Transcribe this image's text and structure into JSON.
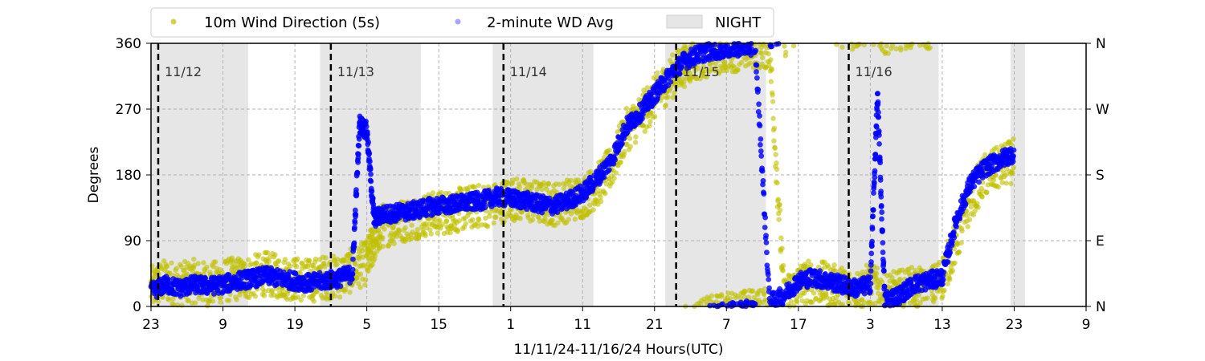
{
  "chart_data": {
    "type": "scatter",
    "title": "",
    "xlabel": "11/11/24-11/16/24  Hours(UTC)",
    "ylabel": "Degrees",
    "x_units": "hours since 11/11/24 23:00 UTC",
    "xlim": [
      0,
      130
    ],
    "ylim": [
      0,
      360
    ],
    "x_ticks": [
      {
        "x": 0,
        "label": "23"
      },
      {
        "x": 10,
        "label": "9"
      },
      {
        "x": 20,
        "label": "19"
      },
      {
        "x": 30,
        "label": "5"
      },
      {
        "x": 40,
        "label": "15"
      },
      {
        "x": 50,
        "label": "1"
      },
      {
        "x": 60,
        "label": "11"
      },
      {
        "x": 70,
        "label": "21"
      },
      {
        "x": 80,
        "label": "7"
      },
      {
        "x": 90,
        "label": "17"
      },
      {
        "x": 100,
        "label": "3"
      },
      {
        "x": 110,
        "label": "13"
      },
      {
        "x": 120,
        "label": "23"
      },
      {
        "x": 130,
        "label": "9"
      }
    ],
    "y_ticks": [
      {
        "y": 0,
        "label": "0"
      },
      {
        "y": 90,
        "label": "90"
      },
      {
        "y": 180,
        "label": "180"
      },
      {
        "y": 270,
        "label": "270"
      },
      {
        "y": 360,
        "label": "360"
      }
    ],
    "y_ticks_right": [
      {
        "y": 0,
        "label": "N"
      },
      {
        "y": 90,
        "label": "E"
      },
      {
        "y": 180,
        "label": "S"
      },
      {
        "y": 270,
        "label": "W"
      },
      {
        "y": 360,
        "label": "N"
      }
    ],
    "grid": true,
    "legend_position": "top-center-outside",
    "legend": [
      {
        "label": "10m Wind Direction (5s)",
        "marker": "point",
        "color": "#bfbf00"
      },
      {
        "label": "2-minute WD Avg",
        "marker": "point",
        "color": "#0000ff"
      },
      {
        "label": "NIGHT",
        "marker": "patch",
        "color": "#e6e6e6"
      }
    ],
    "night_periods": [
      [
        0,
        13.5
      ],
      [
        23.5,
        37.5
      ],
      [
        47.5,
        61.5
      ],
      [
        71.5,
        85.5
      ],
      [
        95.5,
        109.5
      ],
      [
        119.5,
        121.5
      ]
    ],
    "day_boundaries": [
      {
        "x": 1,
        "label": "11/12"
      },
      {
        "x": 25,
        "label": "11/13"
      },
      {
        "x": 49,
        "label": "11/14"
      },
      {
        "x": 73,
        "label": "11/15"
      },
      {
        "x": 97,
        "label": "11/16"
      }
    ],
    "series": [
      {
        "name": "10m Wind Direction (5s)",
        "color": "#bfbf00",
        "spread": 30,
        "points": [
          [
            0,
            25
          ],
          [
            2,
            35
          ],
          [
            4,
            30
          ],
          [
            6,
            35
          ],
          [
            8,
            30
          ],
          [
            10,
            35
          ],
          [
            12,
            38
          ],
          [
            14,
            40
          ],
          [
            16,
            45
          ],
          [
            18,
            40
          ],
          [
            20,
            38
          ],
          [
            22,
            35
          ],
          [
            24,
            40
          ],
          [
            26,
            40
          ],
          [
            28,
            50
          ],
          [
            30,
            60
          ],
          [
            31,
            90
          ],
          [
            32,
            110
          ],
          [
            34,
            115
          ],
          [
            36,
            120
          ],
          [
            38,
            125
          ],
          [
            40,
            128
          ],
          [
            42,
            130
          ],
          [
            44,
            135
          ],
          [
            46,
            138
          ],
          [
            48,
            140
          ],
          [
            50,
            148
          ],
          [
            52,
            145
          ],
          [
            54,
            142
          ],
          [
            56,
            140
          ],
          [
            58,
            145
          ],
          [
            60,
            150
          ],
          [
            62,
            165
          ],
          [
            64,
            190
          ],
          [
            66,
            240
          ],
          [
            68,
            260
          ],
          [
            70,
            285
          ],
          [
            72,
            310
          ],
          [
            74,
            330
          ],
          [
            76,
            340
          ],
          [
            78,
            345
          ],
          [
            80,
            350
          ],
          [
            82,
            352
          ],
          [
            84,
            355
          ],
          [
            86,
            355
          ],
          [
            88,
            10
          ],
          [
            90,
            30
          ],
          [
            92,
            35
          ],
          [
            94,
            30
          ],
          [
            96,
            25
          ],
          [
            98,
            20
          ],
          [
            100,
            30
          ],
          [
            102,
            15
          ],
          [
            104,
            20
          ],
          [
            106,
            25
          ],
          [
            108,
            20
          ],
          [
            110,
            40
          ],
          [
            112,
            90
          ],
          [
            114,
            150
          ],
          [
            116,
            180
          ],
          [
            118,
            190
          ],
          [
            120,
            200
          ]
        ]
      },
      {
        "name": "2-minute WD Avg",
        "color": "#0000ff",
        "spread": 12,
        "points": [
          [
            0,
            20
          ],
          [
            2,
            30
          ],
          [
            4,
            25
          ],
          [
            6,
            30
          ],
          [
            8,
            28
          ],
          [
            10,
            30
          ],
          [
            12,
            35
          ],
          [
            14,
            38
          ],
          [
            16,
            42
          ],
          [
            18,
            38
          ],
          [
            20,
            35
          ],
          [
            22,
            32
          ],
          [
            24,
            35
          ],
          [
            26,
            38
          ],
          [
            28,
            45
          ],
          [
            29,
            250
          ],
          [
            30,
            240
          ],
          [
            31,
            120
          ],
          [
            32,
            125
          ],
          [
            34,
            128
          ],
          [
            36,
            130
          ],
          [
            38,
            135
          ],
          [
            40,
            138
          ],
          [
            42,
            140
          ],
          [
            44,
            142
          ],
          [
            46,
            145
          ],
          [
            48,
            150
          ],
          [
            50,
            148
          ],
          [
            52,
            145
          ],
          [
            54,
            140
          ],
          [
            56,
            138
          ],
          [
            58,
            145
          ],
          [
            60,
            155
          ],
          [
            62,
            175
          ],
          [
            64,
            200
          ],
          [
            66,
            245
          ],
          [
            68,
            265
          ],
          [
            70,
            290
          ],
          [
            72,
            315
          ],
          [
            74,
            335
          ],
          [
            76,
            345
          ],
          [
            78,
            350
          ],
          [
            80,
            352
          ],
          [
            82,
            355
          ],
          [
            84,
            356
          ],
          [
            86,
            5
          ],
          [
            88,
            15
          ],
          [
            90,
            35
          ],
          [
            92,
            40
          ],
          [
            94,
            35
          ],
          [
            96,
            30
          ],
          [
            98,
            25
          ],
          [
            100,
            30
          ],
          [
            101,
            290
          ],
          [
            102,
            10
          ],
          [
            104,
            15
          ],
          [
            106,
            30
          ],
          [
            108,
            35
          ],
          [
            110,
            40
          ],
          [
            112,
            120
          ],
          [
            114,
            170
          ],
          [
            116,
            190
          ],
          [
            118,
            200
          ],
          [
            120,
            210
          ]
        ]
      }
    ]
  }
}
